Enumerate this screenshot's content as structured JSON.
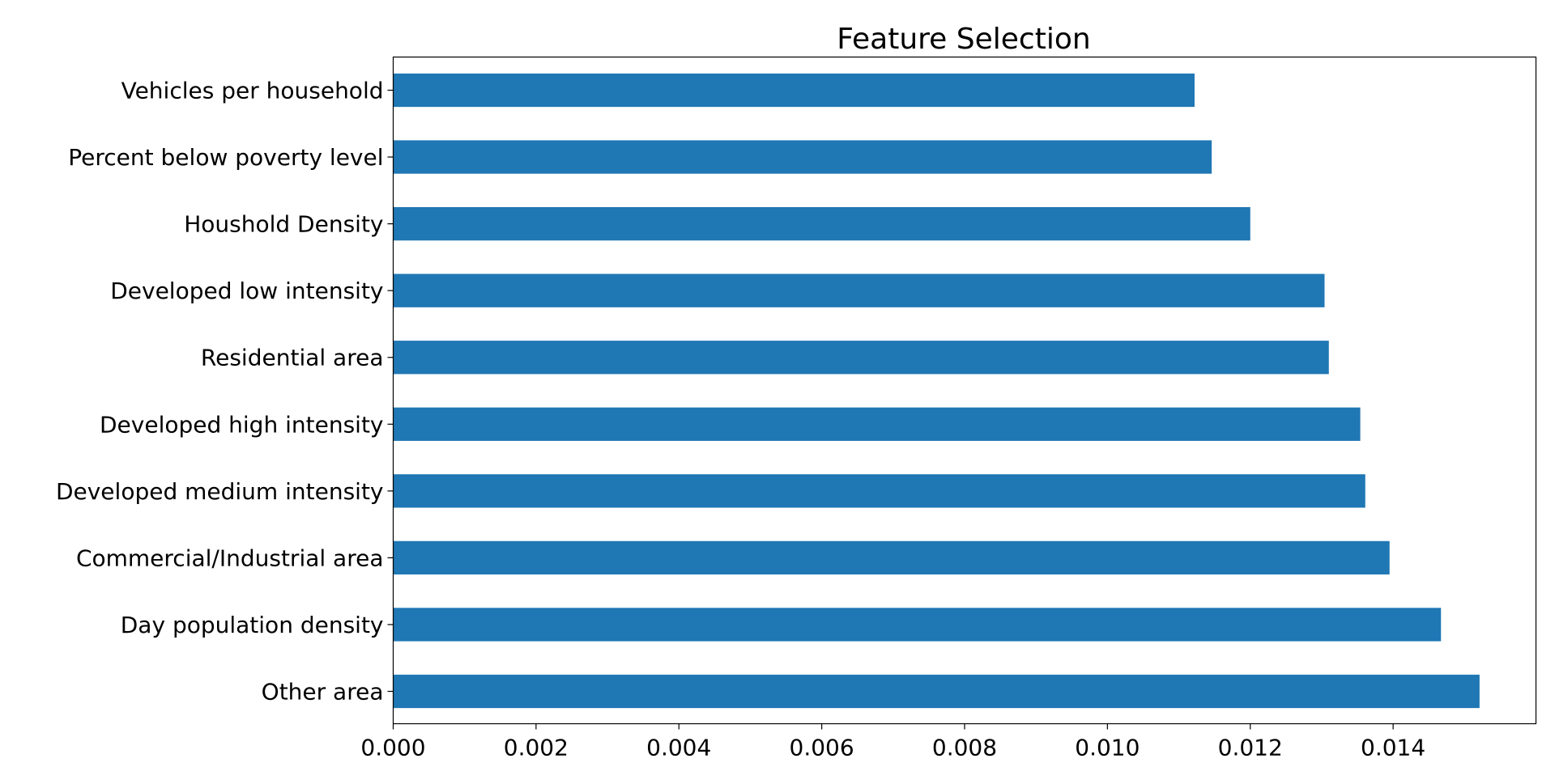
{
  "chart_data": {
    "type": "bar",
    "orientation": "horizontal",
    "title": "Feature Selection",
    "xlabel": "",
    "ylabel": "",
    "categories": [
      "Other area",
      "Day population density",
      "Commercial/Industrial area",
      "Developed medium intensity",
      "Developed high intensity",
      "Residential area",
      "Developed low intensity",
      "Houshold Density",
      "Percent below poverty level",
      "Vehicles per household"
    ],
    "values": [
      0.01521,
      0.01467,
      0.01395,
      0.01361,
      0.01354,
      0.0131,
      0.01304,
      0.012,
      0.01146,
      0.01122
    ],
    "xlim": [
      0,
      0.016
    ],
    "xticks": [
      0.0,
      0.002,
      0.004,
      0.006,
      0.008,
      0.01,
      0.012,
      0.014
    ],
    "xtick_labels": [
      "0.000",
      "0.002",
      "0.004",
      "0.006",
      "0.008",
      "0.010",
      "0.012",
      "0.014"
    ],
    "bar_color": "#1f77b4",
    "grid": false,
    "legend": "none"
  }
}
